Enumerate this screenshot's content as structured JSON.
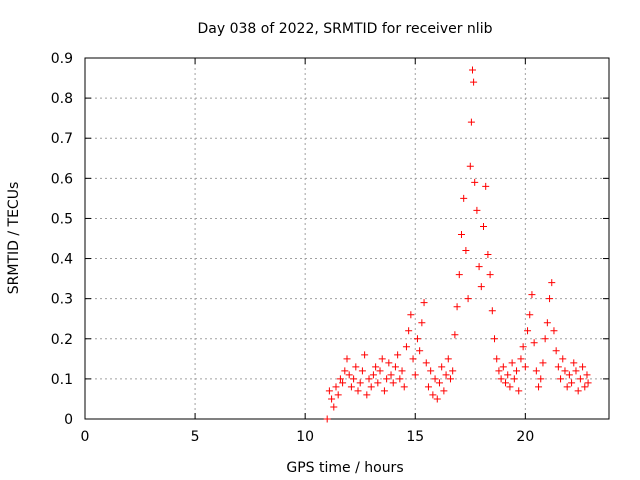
{
  "chart_data": {
    "type": "scatter",
    "title": "Day 038 of 2022, SRMTID for receiver nlib",
    "xlabel": "GPS time / hours",
    "ylabel": "SRMTID / TECUs",
    "xlim": [
      0,
      23.8
    ],
    "ylim": [
      0,
      0.9
    ],
    "xticks": [
      "0",
      "5",
      "10",
      "15",
      "20"
    ],
    "yticks": [
      "0",
      "0.1",
      "0.2",
      "0.3",
      "0.4",
      "0.5",
      "0.6",
      "0.7",
      "0.8",
      "0.9"
    ],
    "grid": true,
    "marker": "+",
    "color": "#ff0000",
    "series": [
      {
        "name": "SRMTID",
        "points": [
          [
            11.0,
            0.0
          ],
          [
            11.1,
            0.07
          ],
          [
            11.2,
            0.05
          ],
          [
            11.3,
            0.03
          ],
          [
            11.4,
            0.08
          ],
          [
            11.5,
            0.06
          ],
          [
            11.6,
            0.1
          ],
          [
            11.7,
            0.09
          ],
          [
            11.8,
            0.12
          ],
          [
            11.9,
            0.15
          ],
          [
            12.0,
            0.11
          ],
          [
            12.1,
            0.08
          ],
          [
            12.2,
            0.1
          ],
          [
            12.3,
            0.13
          ],
          [
            12.4,
            0.07
          ],
          [
            12.5,
            0.09
          ],
          [
            12.6,
            0.12
          ],
          [
            12.7,
            0.16
          ],
          [
            12.8,
            0.06
          ],
          [
            12.9,
            0.1
          ],
          [
            13.0,
            0.08
          ],
          [
            13.1,
            0.11
          ],
          [
            13.2,
            0.13
          ],
          [
            13.3,
            0.09
          ],
          [
            13.4,
            0.12
          ],
          [
            13.5,
            0.15
          ],
          [
            13.6,
            0.07
          ],
          [
            13.7,
            0.1
          ],
          [
            13.8,
            0.14
          ],
          [
            13.9,
            0.11
          ],
          [
            14.0,
            0.09
          ],
          [
            14.1,
            0.13
          ],
          [
            14.2,
            0.16
          ],
          [
            14.3,
            0.1
          ],
          [
            14.4,
            0.12
          ],
          [
            14.5,
            0.08
          ],
          [
            14.6,
            0.18
          ],
          [
            14.7,
            0.22
          ],
          [
            14.8,
            0.26
          ],
          [
            14.9,
            0.15
          ],
          [
            15.0,
            0.11
          ],
          [
            15.1,
            0.2
          ],
          [
            15.2,
            0.17
          ],
          [
            15.3,
            0.24
          ],
          [
            15.4,
            0.29
          ],
          [
            15.5,
            0.14
          ],
          [
            15.6,
            0.08
          ],
          [
            15.7,
            0.12
          ],
          [
            15.8,
            0.06
          ],
          [
            15.9,
            0.1
          ],
          [
            16.0,
            0.05
          ],
          [
            16.1,
            0.09
          ],
          [
            16.2,
            0.13
          ],
          [
            16.3,
            0.07
          ],
          [
            16.4,
            0.11
          ],
          [
            16.5,
            0.15
          ],
          [
            16.6,
            0.1
          ],
          [
            16.7,
            0.12
          ],
          [
            16.8,
            0.21
          ],
          [
            16.9,
            0.28
          ],
          [
            17.0,
            0.36
          ],
          [
            17.1,
            0.46
          ],
          [
            17.2,
            0.55
          ],
          [
            17.3,
            0.42
          ],
          [
            17.4,
            0.3
          ],
          [
            17.5,
            0.63
          ],
          [
            17.55,
            0.74
          ],
          [
            17.6,
            0.87
          ],
          [
            17.65,
            0.84
          ],
          [
            17.7,
            0.59
          ],
          [
            17.8,
            0.52
          ],
          [
            17.9,
            0.38
          ],
          [
            18.0,
            0.33
          ],
          [
            18.1,
            0.48
          ],
          [
            18.2,
            0.58
          ],
          [
            18.3,
            0.41
          ],
          [
            18.4,
            0.36
          ],
          [
            18.5,
            0.27
          ],
          [
            18.6,
            0.2
          ],
          [
            18.7,
            0.15
          ],
          [
            18.8,
            0.12
          ],
          [
            18.9,
            0.1
          ],
          [
            19.0,
            0.13
          ],
          [
            19.1,
            0.09
          ],
          [
            19.2,
            0.11
          ],
          [
            19.3,
            0.08
          ],
          [
            19.4,
            0.14
          ],
          [
            19.5,
            0.1
          ],
          [
            19.6,
            0.12
          ],
          [
            19.7,
            0.07
          ],
          [
            19.8,
            0.15
          ],
          [
            19.9,
            0.18
          ],
          [
            20.0,
            0.13
          ],
          [
            20.1,
            0.22
          ],
          [
            20.2,
            0.26
          ],
          [
            20.3,
            0.31
          ],
          [
            20.4,
            0.19
          ],
          [
            20.5,
            0.12
          ],
          [
            20.6,
            0.08
          ],
          [
            20.7,
            0.1
          ],
          [
            20.8,
            0.14
          ],
          [
            20.9,
            0.2
          ],
          [
            21.0,
            0.24
          ],
          [
            21.1,
            0.3
          ],
          [
            21.2,
            0.34
          ],
          [
            21.3,
            0.22
          ],
          [
            21.4,
            0.17
          ],
          [
            21.5,
            0.13
          ],
          [
            21.6,
            0.1
          ],
          [
            21.7,
            0.15
          ],
          [
            21.8,
            0.12
          ],
          [
            21.9,
            0.08
          ],
          [
            22.0,
            0.11
          ],
          [
            22.1,
            0.09
          ],
          [
            22.2,
            0.14
          ],
          [
            22.3,
            0.12
          ],
          [
            22.4,
            0.07
          ],
          [
            22.5,
            0.1
          ],
          [
            22.6,
            0.13
          ],
          [
            22.7,
            0.08
          ],
          [
            22.8,
            0.11
          ],
          [
            22.85,
            0.09
          ]
        ]
      }
    ]
  }
}
